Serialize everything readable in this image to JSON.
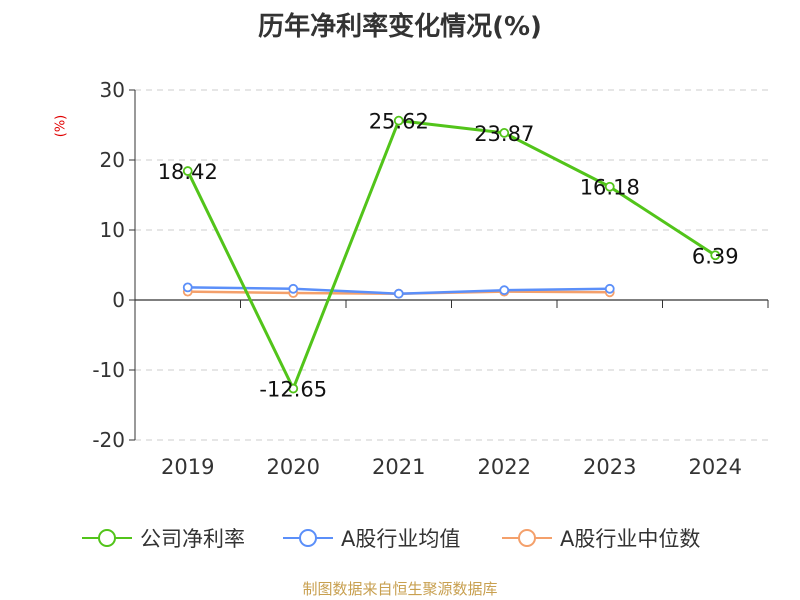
{
  "chart_data": {
    "type": "line",
    "title": "历年净利率变化情况(%)",
    "ylabel": "(%)",
    "xlabel": "",
    "categories": [
      "2019",
      "2020",
      "2021",
      "2022",
      "2023",
      "2024"
    ],
    "ylim": [
      -20,
      30
    ],
    "yticks": [
      30,
      20,
      10,
      0,
      -10,
      -20
    ],
    "grid": true,
    "legend_position": "bottom",
    "series": [
      {
        "name": "公司净利率",
        "color": "#52c41a",
        "values": [
          18.42,
          -12.65,
          25.62,
          23.87,
          16.18,
          6.39
        ],
        "labels": [
          "18.42",
          "-12.65",
          "25.62",
          "23.87",
          "16.18",
          "6.39"
        ]
      },
      {
        "name": "A股行业均值",
        "color": "#5b8ff9",
        "values": [
          1.8,
          1.6,
          0.9,
          1.4,
          1.6,
          null
        ]
      },
      {
        "name": "A股行业中位数",
        "color": "#f4a06b",
        "values": [
          1.2,
          1.0,
          0.9,
          1.2,
          1.1,
          null
        ]
      }
    ]
  },
  "footer": {
    "source": "制图数据来自恒生聚源数据库"
  }
}
